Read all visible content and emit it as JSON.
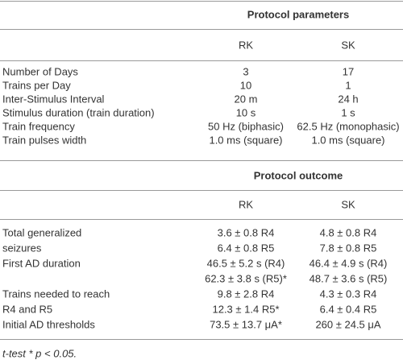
{
  "sections": [
    {
      "title": "Protocol parameters",
      "columns": [
        "RK",
        "SK"
      ],
      "rows": [
        {
          "label": [
            "Number of Days"
          ],
          "rk": [
            "3"
          ],
          "sk": [
            "17"
          ]
        },
        {
          "label": [
            "Trains per Day"
          ],
          "rk": [
            "10"
          ],
          "sk": [
            "1"
          ]
        },
        {
          "label": [
            "Inter-Stimulus Interval"
          ],
          "rk": [
            "20 m"
          ],
          "sk": [
            "24 h"
          ]
        },
        {
          "label": [
            "Stimulus duration (train duration)"
          ],
          "rk": [
            "10 s"
          ],
          "sk": [
            "1 s"
          ]
        },
        {
          "label": [
            "Train frequency"
          ],
          "rk": [
            "50 Hz (biphasic)"
          ],
          "sk": [
            "62.5 Hz (monophasic)"
          ]
        },
        {
          "label": [
            "Train pulses width"
          ],
          "rk": [
            "1.0 ms (square)"
          ],
          "sk": [
            "1.0 ms (square)"
          ]
        }
      ]
    },
    {
      "title": "Protocol outcome",
      "columns": [
        "RK",
        "SK"
      ],
      "rows": [
        {
          "label": [
            "Total generalized",
            "seizures"
          ],
          "rk": [
            "3.6 ± 0.8 R4",
            "6.4 ± 0.8 R5"
          ],
          "sk": [
            "4.8 ± 0.8 R4",
            "7.8 ± 0.8 R5"
          ]
        },
        {
          "label": [
            "First AD duration"
          ],
          "rk": [
            "46.5 ± 5.2 s (R4)",
            "62.3 ± 3.8 s (R5)*"
          ],
          "sk": [
            "46.4 ± 4.9 s (R4)",
            "48.7 ± 3.6 s (R5)"
          ]
        },
        {
          "label": [
            "Trains needed to reach",
            "R4 and R5"
          ],
          "rk": [
            "9.8 ± 2.8 R4",
            "12.3 ± 1.4 R5*"
          ],
          "sk": [
            "4.3 ± 0.3 R4",
            "6.4 ± 0.4 R5"
          ]
        },
        {
          "label": [
            "Initial AD thresholds"
          ],
          "rk": [
            "73.5 ± 13.7 μA*"
          ],
          "sk": [
            "260 ± 24.5 μA"
          ]
        }
      ]
    }
  ],
  "footnote": "t-test * p < 0.05."
}
